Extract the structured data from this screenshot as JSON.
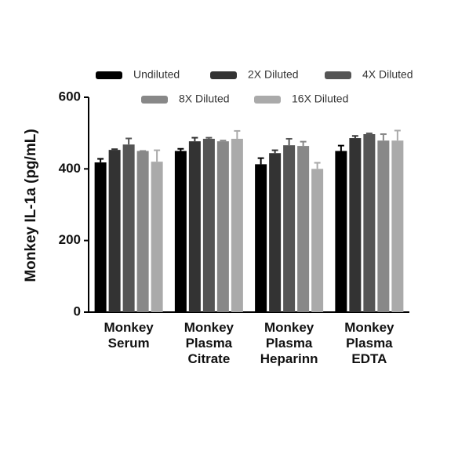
{
  "chart_data": {
    "type": "bar",
    "y_label": "Monkey IL-1a (pg/mL)",
    "categories": [
      "Monkey Serum",
      "Monkey Plasma Citrate",
      "Monkey Plasma Heparinn",
      "Monkey Plasma EDTA"
    ],
    "series": [
      {
        "name": "Undiluted",
        "color": "#000000",
        "values": [
          418,
          450,
          413,
          450
        ],
        "errors": [
          10,
          6,
          17,
          15
        ]
      },
      {
        "name": "2X Diluted",
        "color": "#333333",
        "values": [
          453,
          477,
          444,
          486
        ],
        "errors": [
          2,
          10,
          8,
          6
        ]
      },
      {
        "name": "4X Diluted",
        "color": "#555555",
        "values": [
          468,
          484,
          466,
          497
        ],
        "errors": [
          17,
          3,
          18,
          2
        ]
      },
      {
        "name": "8X Diluted",
        "color": "#888888",
        "values": [
          450,
          477,
          464,
          479
        ],
        "errors": [
          0,
          2,
          12,
          18
        ]
      },
      {
        "name": "16X Diluted",
        "color": "#aaaaaa",
        "values": [
          420,
          484,
          400,
          479
        ],
        "errors": [
          32,
          22,
          17,
          28
        ]
      }
    ],
    "ylim": [
      0,
      600
    ],
    "yticks": [
      0,
      200,
      400,
      600
    ],
    "legend": "top"
  }
}
